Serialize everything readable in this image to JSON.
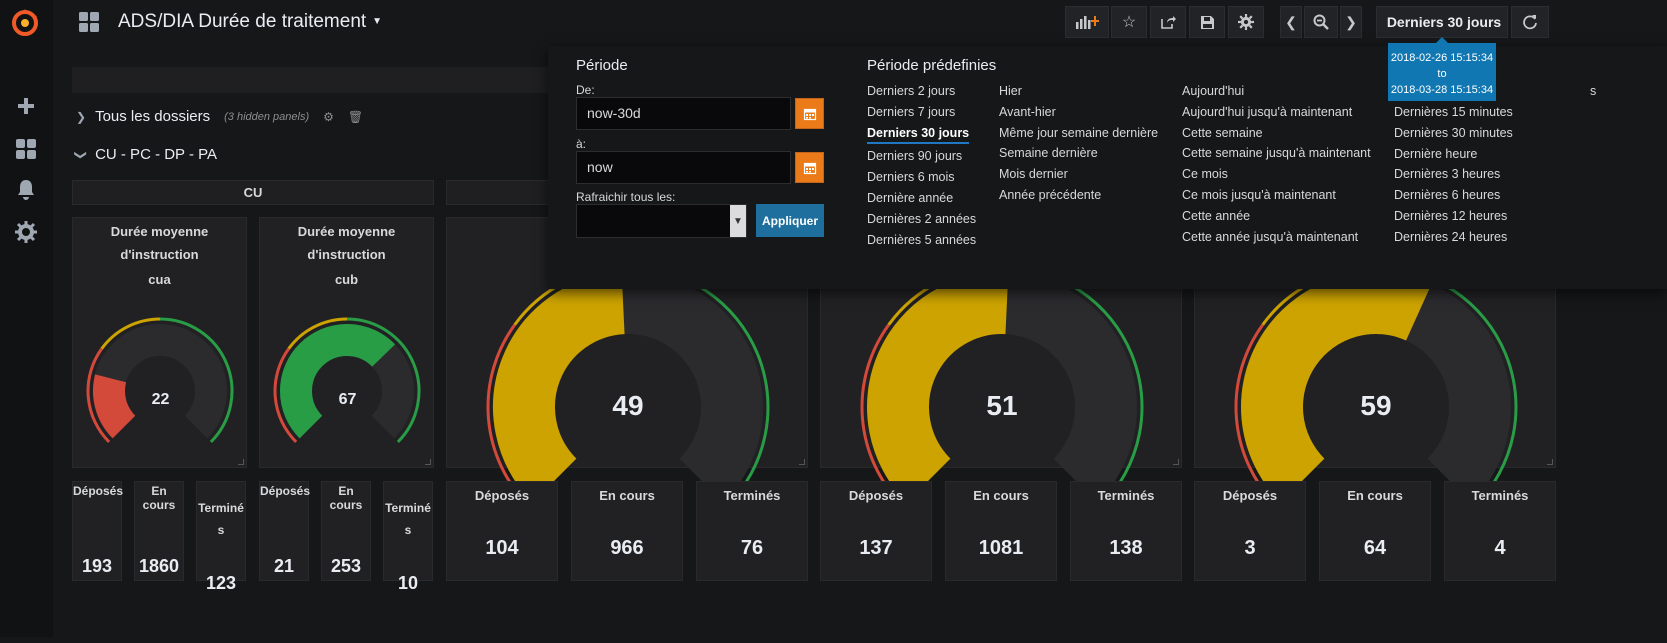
{
  "navbar": {
    "title": "ADS/DIA Durée de traitement",
    "time_range_label": "Derniers 30 jours",
    "tooltip": {
      "from": "2018-02-26 15:15:34",
      "to_word": "to",
      "to": "2018-03-28 15:15:34"
    }
  },
  "rows": [
    {
      "title": "Tous les dossiers",
      "hidden_note": "(3 hidden panels)"
    },
    {
      "title": "CU - PC - DP - PA"
    }
  ],
  "column_header": "CU",
  "small_gauges": [
    {
      "title_line1": "Durée moyenne d'instruction",
      "title_line2": "cua",
      "value": "22",
      "numeric_value": 22
    },
    {
      "title_line1": "Durée moyenne d'instruction",
      "title_line2": "cub",
      "value": "67",
      "numeric_value": 67
    }
  ],
  "large_gauges": [
    {
      "value": "49",
      "numeric_value": 49
    },
    {
      "value": "51",
      "numeric_value": 51
    },
    {
      "value": "59",
      "numeric_value": 59
    }
  ],
  "small_stats": [
    {
      "deposes_label": "Déposés",
      "deposes": "193",
      "en_cours_label": "En cours",
      "en_cours": "1860",
      "termines_label_1": "Terminé",
      "termines_label_2": "s",
      "termines": "123"
    },
    {
      "deposes_label": "Déposés",
      "deposes": "21",
      "en_cours_label": "En cours",
      "en_cours": "253",
      "termines_label_1": "Terminé",
      "termines_label_2": "s",
      "termines": "10"
    }
  ],
  "large_stats": [
    {
      "deposes_label": "Déposés",
      "deposes": "104",
      "en_cours_label": "En cours",
      "en_cours": "966",
      "termines_label": "Terminés",
      "termines": "76"
    },
    {
      "deposes_label": "Déposés",
      "deposes": "137",
      "en_cours_label": "En cours",
      "en_cours": "1081",
      "termines_label": "Terminés",
      "termines": "138"
    },
    {
      "deposes_label": "Déposés",
      "deposes": "3",
      "en_cours_label": "En cours",
      "en_cours": "64",
      "termines_label": "Terminés",
      "termines": "4"
    }
  ],
  "picker": {
    "period_title": "Période",
    "from_label": "De:",
    "from_value": "now-30d",
    "to_label": "à:",
    "to_value": "now",
    "refresh_label": "Rafraichir tous les:",
    "apply_label": "Appliquer",
    "presets_title": "Période prédefinies",
    "col1": [
      "Derniers 2 jours",
      "Derniers 7 jours",
      "Derniers 30 jours",
      "Derniers 90 jours",
      "Derniers 6 mois",
      "Dernière année",
      "Dernières 2 années",
      "Dernières 5 années"
    ],
    "col2": [
      "Hier",
      "Avant-hier",
      "Même jour semaine dernière",
      "Semaine dernière",
      "Mois dernier",
      "Année précédente"
    ],
    "col3": [
      "Aujourd'hui",
      "Aujourd'hui jusqu'à maintenant",
      "Cette semaine",
      "Cette semaine jusqu'à maintenant",
      "Ce mois",
      "Ce mois jusqu'à maintenant",
      "Cette année",
      "Cette année jusqu'à maintenant"
    ],
    "col4_first_partial": "s",
    "col4": [
      "Dernières 15 minutes",
      "Dernières 30 minutes",
      "Dernière heure",
      "Dernières 3 heures",
      "Dernières 6 heures",
      "Dernières 12 heures",
      "Dernières 24 heures"
    ],
    "active": "Derniers 30 jours"
  },
  "colors": {
    "accent_orange": "#eb7b18",
    "gauge_green": "#299c46",
    "gauge_yellow": "#cca300",
    "gauge_orange": "#d44a3a",
    "tooltip_blue": "#1177b3"
  }
}
